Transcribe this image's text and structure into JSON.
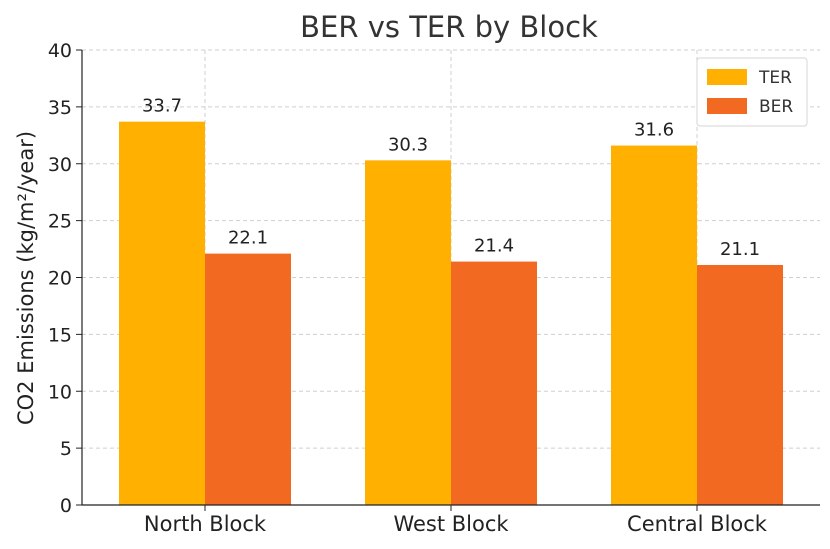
{
  "chart_data": {
    "type": "bar",
    "title": "BER vs TER by Block",
    "xlabel": "",
    "ylabel": "CO2 Emissions (kg/m²/year)",
    "categories": [
      "North Block",
      "West Block",
      "Central Block"
    ],
    "series": [
      {
        "name": "TER",
        "values": [
          33.7,
          30.3,
          31.6
        ],
        "color": "#ffb000"
      },
      {
        "name": "BER",
        "values": [
          22.1,
          21.4,
          21.1
        ],
        "color": "#f26a21"
      }
    ],
    "ylim": [
      0,
      40
    ],
    "yticks": [
      0,
      5,
      10,
      15,
      20,
      25,
      30,
      35,
      40
    ],
    "grid": true,
    "legend_position": "top-right",
    "data_labels": true
  }
}
